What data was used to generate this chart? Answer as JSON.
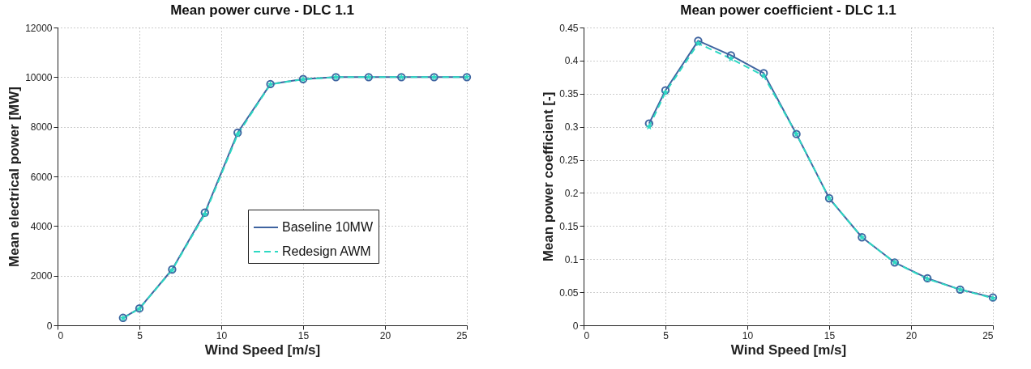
{
  "chart_data": [
    {
      "type": "line",
      "title": "Mean power curve - DLC 1.1",
      "xlabel": "Wind Speed [m/s]",
      "ylabel": "Mean electrical power [MW]",
      "x": [
        4,
        5,
        7,
        9,
        11,
        13,
        15,
        17,
        19,
        21,
        23,
        25
      ],
      "series": [
        {
          "name": "Baseline 10MW",
          "color": "#3f64a0",
          "marker": "circle",
          "line_style": "solid",
          "values": [
            300,
            680,
            2250,
            4540,
            7760,
            9720,
            9920,
            10000,
            10000,
            10000,
            10000,
            10000
          ]
        },
        {
          "name": "Redesign AWM",
          "color": "#2ed9c3",
          "marker": "star",
          "line_style": "dashed",
          "values": [
            290,
            670,
            2230,
            4480,
            7690,
            9710,
            9910,
            10000,
            10000,
            10000,
            10000,
            10000
          ]
        }
      ],
      "xlim": [
        0,
        25
      ],
      "xticks": [
        0,
        5,
        10,
        15,
        20,
        25
      ],
      "ylim": [
        0,
        12000
      ],
      "yticks": [
        0,
        2000,
        4000,
        6000,
        8000,
        10000,
        12000
      ],
      "grid": true,
      "legend": "right"
    },
    {
      "type": "line",
      "title": "Mean power coefficient - DLC 1.1",
      "xlabel": "Wind Speed [m/s]",
      "ylabel": "Mean power coefficient [-]",
      "x": [
        4,
        5,
        7,
        9,
        11,
        13,
        15,
        17,
        19,
        21,
        23,
        25
      ],
      "series": [
        {
          "name": "Baseline 10MW",
          "color": "#3f64a0",
          "marker": "circle",
          "line_style": "solid",
          "values": [
            0.305,
            0.355,
            0.43,
            0.408,
            0.381,
            0.289,
            0.192,
            0.133,
            0.095,
            0.071,
            0.054,
            0.042
          ]
        },
        {
          "name": "Redesign AWM",
          "color": "#2ed9c3",
          "marker": "star",
          "line_style": "dashed",
          "values": [
            0.3,
            0.352,
            0.426,
            0.403,
            0.377,
            0.289,
            0.192,
            0.133,
            0.095,
            0.07,
            0.054,
            0.041
          ]
        }
      ],
      "xlim": [
        0,
        25
      ],
      "xticks": [
        0,
        5,
        10,
        15,
        20,
        25
      ],
      "ylim": [
        0,
        0.45
      ],
      "yticks": [
        0,
        0.05,
        0.1,
        0.15,
        0.2,
        0.25,
        0.3,
        0.35,
        0.4,
        0.45
      ],
      "grid": true,
      "legend": "bottom left"
    }
  ]
}
